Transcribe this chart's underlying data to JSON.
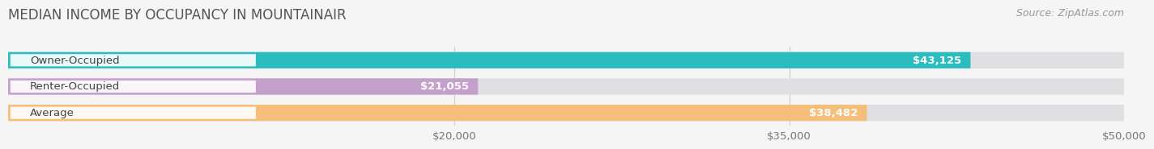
{
  "title": "MEDIAN INCOME BY OCCUPANCY IN MOUNTAINAIR",
  "source": "Source: ZipAtlas.com",
  "categories": [
    "Owner-Occupied",
    "Renter-Occupied",
    "Average"
  ],
  "values": [
    43125,
    21055,
    38482
  ],
  "labels": [
    "$43,125",
    "$21,055",
    "$38,482"
  ],
  "bar_colors": [
    "#2bbcbf",
    "#c4a0cc",
    "#f5be7a"
  ],
  "bar_bg_color": "#e0e0e3",
  "xlim": [
    0,
    50000
  ],
  "xticks": [
    20000,
    35000,
    50000
  ],
  "xtick_labels": [
    "$20,000",
    "$35,000",
    "$50,000"
  ],
  "title_fontsize": 12,
  "source_fontsize": 9,
  "label_fontsize": 9.5,
  "cat_fontsize": 9.5,
  "bar_height": 0.62,
  "background_color": "#f5f5f5",
  "title_color": "#555555",
  "label_color_inside": "#ffffff",
  "label_color_outside": "#555555",
  "source_color": "#999999",
  "grid_color": "#cccccc",
  "badge_color": "#ffffff",
  "badge_alpha": 0.9
}
